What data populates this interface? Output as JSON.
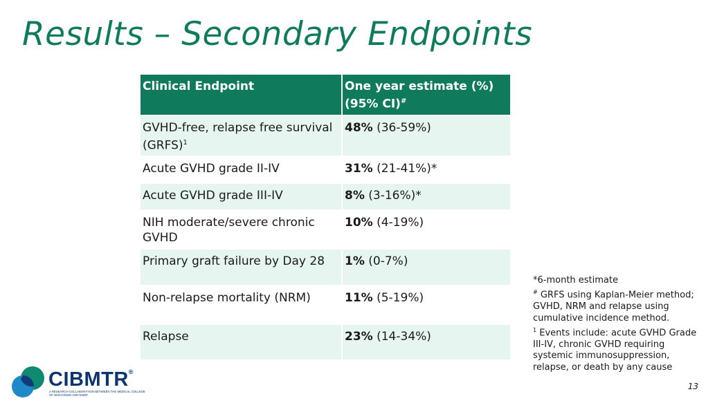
{
  "slide": {
    "title": "Results – Secondary Endpoints",
    "page_number": "13"
  },
  "table": {
    "headers": {
      "endpoint": "Clinical Endpoint",
      "estimate_line1": "One year estimate (%)",
      "estimate_line2": "(95% CI)",
      "estimate_mark": "#"
    },
    "rows": [
      {
        "endpoint": "GVHD-free, relapse free survival (GRFS)",
        "endpoint_sup": "1",
        "pct": "48%",
        "ci": " (36-59%)"
      },
      {
        "endpoint": "Acute GVHD grade II-IV",
        "endpoint_sup": "",
        "pct": "31%",
        "ci": " (21-41%)*"
      },
      {
        "endpoint": "Acute GVHD grade III-IV",
        "endpoint_sup": "",
        "pct": "8%",
        "ci": " (3-16%)*"
      },
      {
        "endpoint": "NIH moderate/severe chronic GVHD",
        "endpoint_sup": "",
        "pct": "10%",
        "ci": " (4-19%)"
      },
      {
        "endpoint": "Primary graft failure by Day 28",
        "endpoint_sup": "",
        "pct": "1%",
        "ci": " (0-7%)"
      },
      {
        "endpoint": "Non-relapse mortality (NRM)",
        "endpoint_sup": "",
        "pct": "11%",
        "ci": " (5-19%)"
      },
      {
        "endpoint": "Relapse",
        "endpoint_sup": "",
        "pct": "23%",
        "ci": " (14-34%)"
      }
    ]
  },
  "footnotes": {
    "six_month": "*6-month estimate",
    "grfs_mark": "#",
    "grfs_text": " GRFS using Kaplan-Meier method; GVHD, NRM and relapse using cumulative incidence method.",
    "events_mark": "1",
    "events_text": " Events include: acute GVHD Grade III-IV, chronic GVHD requiring systemic immunosuppression, relapse, or death by any cause"
  },
  "logo": {
    "name": "CIBMTR",
    "registered": "®",
    "tagline": "A research collaboration between the Medical College of Wisconsin and NMDP"
  },
  "colors": {
    "accent": "#0f7a5c",
    "row_shade": "#e6f5ef",
    "logo_navy": "#0e3470",
    "logo_teal": "#0f8a6e",
    "logo_blue": "#1f88c8"
  }
}
